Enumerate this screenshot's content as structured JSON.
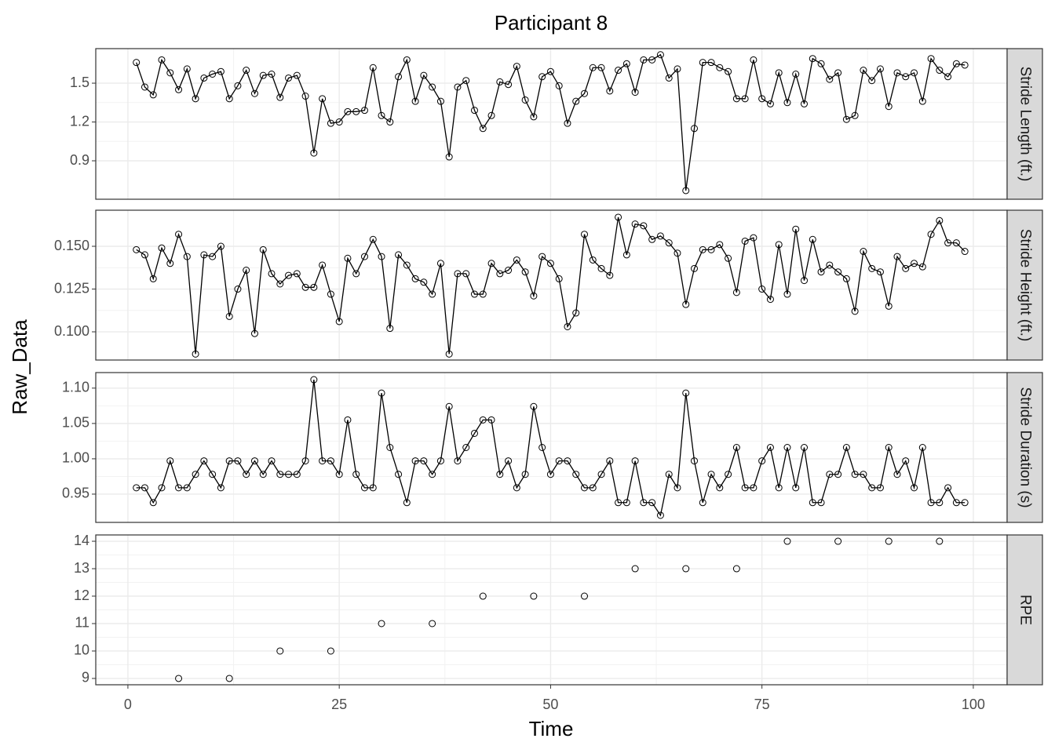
{
  "chart_data": {
    "type": "facet",
    "title": "Participant 8",
    "x_label": "Time",
    "y_label": "Raw_Data",
    "xlim": [
      -3.8,
      104
    ],
    "xticks": [
      0,
      25,
      50,
      75,
      100
    ],
    "grid": true,
    "panels": [
      {
        "type": "line",
        "strip": "Stride Length (ft.)",
        "ylim": [
          0.603,
          1.767
        ],
        "yticks": [
          0.9,
          1.2,
          1.5
        ],
        "x": [
          1,
          2,
          3,
          4,
          5,
          6,
          7,
          8,
          9,
          10,
          11,
          12,
          13,
          14,
          15,
          16,
          17,
          18,
          19,
          20,
          21,
          22,
          23,
          24,
          25,
          26,
          27,
          28,
          29,
          30,
          31,
          32,
          33,
          34,
          35,
          36,
          37,
          38,
          39,
          40,
          41,
          42,
          43,
          44,
          45,
          46,
          47,
          48,
          49,
          50,
          51,
          52,
          53,
          54,
          55,
          56,
          57,
          58,
          59,
          60,
          61,
          62,
          63,
          64,
          65,
          66,
          67,
          68,
          69,
          70,
          71,
          72,
          73,
          74,
          75,
          76,
          77,
          78,
          79,
          80,
          81,
          82,
          83,
          84,
          85,
          86,
          87,
          88,
          89,
          90,
          91,
          92,
          93,
          94,
          95,
          96,
          97,
          98,
          99
        ],
        "values": [
          1.66,
          1.47,
          1.41,
          1.68,
          1.58,
          1.45,
          1.61,
          1.38,
          1.54,
          1.57,
          1.59,
          1.38,
          1.48,
          1.6,
          1.42,
          1.56,
          1.57,
          1.39,
          1.54,
          1.56,
          1.4,
          0.96,
          1.38,
          1.19,
          1.2,
          1.28,
          1.28,
          1.29,
          1.62,
          1.25,
          1.2,
          1.55,
          1.68,
          1.36,
          1.56,
          1.47,
          1.36,
          0.93,
          1.47,
          1.52,
          1.29,
          1.15,
          1.25,
          1.51,
          1.49,
          1.63,
          1.37,
          1.24,
          1.55,
          1.59,
          1.48,
          1.19,
          1.36,
          1.42,
          1.62,
          1.62,
          1.44,
          1.6,
          1.65,
          1.43,
          1.68,
          1.68,
          1.72,
          1.54,
          1.61,
          0.67,
          1.15,
          1.66,
          1.66,
          1.62,
          1.59,
          1.38,
          1.38,
          1.68,
          1.38,
          1.34,
          1.58,
          1.35,
          1.57,
          1.34,
          1.69,
          1.65,
          1.53,
          1.58,
          1.22,
          1.25,
          1.6,
          1.52,
          1.61,
          1.32,
          1.58,
          1.55,
          1.58,
          1.36,
          1.69,
          1.6,
          1.55,
          1.65,
          1.64
        ]
      },
      {
        "type": "line",
        "strip": "Stride Height (ft.)",
        "ylim": [
          0.0835,
          0.1711
        ],
        "yticks": [
          {
            "value": 0.1,
            "label": "0.100"
          },
          {
            "value": 0.125,
            "label": "0.125"
          },
          {
            "value": 0.15,
            "label": "0.150"
          }
        ],
        "x": [
          1,
          2,
          3,
          4,
          5,
          6,
          7,
          8,
          9,
          10,
          11,
          12,
          13,
          14,
          15,
          16,
          17,
          18,
          19,
          20,
          21,
          22,
          23,
          24,
          25,
          26,
          27,
          28,
          29,
          30,
          31,
          32,
          33,
          34,
          35,
          36,
          37,
          38,
          39,
          40,
          41,
          42,
          43,
          44,
          45,
          46,
          47,
          48,
          49,
          50,
          51,
          52,
          53,
          54,
          55,
          56,
          57,
          58,
          59,
          60,
          61,
          62,
          63,
          64,
          65,
          66,
          67,
          68,
          69,
          70,
          71,
          72,
          73,
          74,
          75,
          76,
          77,
          78,
          79,
          80,
          81,
          82,
          83,
          84,
          85,
          86,
          87,
          88,
          89,
          90,
          91,
          92,
          93,
          94,
          95,
          96,
          97,
          98,
          99
        ],
        "values": [
          0.148,
          0.145,
          0.131,
          0.149,
          0.14,
          0.157,
          0.144,
          0.087,
          0.145,
          0.144,
          0.15,
          0.109,
          0.125,
          0.136,
          0.099,
          0.148,
          0.134,
          0.128,
          0.133,
          0.134,
          0.126,
          0.126,
          0.139,
          0.122,
          0.106,
          0.143,
          0.134,
          0.144,
          0.154,
          0.144,
          0.102,
          0.145,
          0.139,
          0.131,
          0.129,
          0.122,
          0.14,
          0.087,
          0.134,
          0.134,
          0.122,
          0.122,
          0.14,
          0.134,
          0.136,
          0.142,
          0.135,
          0.121,
          0.144,
          0.14,
          0.131,
          0.103,
          0.111,
          0.157,
          0.142,
          0.137,
          0.133,
          0.167,
          0.145,
          0.163,
          0.162,
          0.154,
          0.156,
          0.152,
          0.146,
          0.116,
          0.137,
          0.148,
          0.148,
          0.151,
          0.143,
          0.123,
          0.153,
          0.155,
          0.125,
          0.119,
          0.151,
          0.122,
          0.16,
          0.13,
          0.154,
          0.135,
          0.139,
          0.135,
          0.131,
          0.112,
          0.147,
          0.137,
          0.135,
          0.115,
          0.144,
          0.137,
          0.14,
          0.138,
          0.157,
          0.165,
          0.152,
          0.152,
          0.147
        ]
      },
      {
        "type": "line",
        "strip": "Stride Duration (s)",
        "ylim": [
          0.91,
          1.122
        ],
        "yticks": [
          0.95,
          {
            "value": 1.0,
            "label": "1.00"
          },
          1.05,
          {
            "value": 1.1,
            "label": "1.10"
          }
        ],
        "x": [
          1,
          2,
          3,
          4,
          5,
          6,
          7,
          8,
          9,
          10,
          11,
          12,
          13,
          14,
          15,
          16,
          17,
          18,
          19,
          20,
          21,
          22,
          23,
          24,
          25,
          26,
          27,
          28,
          29,
          30,
          31,
          32,
          33,
          34,
          35,
          36,
          37,
          38,
          39,
          40,
          41,
          42,
          43,
          44,
          45,
          46,
          47,
          48,
          49,
          50,
          51,
          52,
          53,
          54,
          55,
          56,
          57,
          58,
          59,
          60,
          61,
          62,
          63,
          64,
          65,
          66,
          67,
          68,
          69,
          70,
          71,
          72,
          73,
          74,
          75,
          76,
          77,
          78,
          79,
          80,
          81,
          82,
          83,
          84,
          85,
          86,
          87,
          88,
          89,
          90,
          91,
          92,
          93,
          94,
          95,
          96,
          97,
          98,
          99
        ],
        "values": [
          0.959,
          0.959,
          0.938,
          0.959,
          0.997,
          0.959,
          0.959,
          0.978,
          0.997,
          0.978,
          0.959,
          0.997,
          0.997,
          0.978,
          0.997,
          0.978,
          0.997,
          0.978,
          0.978,
          0.978,
          0.997,
          1.112,
          0.997,
          0.997,
          0.978,
          1.055,
          0.978,
          0.959,
          0.959,
          1.093,
          1.016,
          0.978,
          0.938,
          0.997,
          0.997,
          0.978,
          0.997,
          1.074,
          0.997,
          1.016,
          1.036,
          1.055,
          1.055,
          0.978,
          0.997,
          0.959,
          0.978,
          1.074,
          1.016,
          0.978,
          0.997,
          0.997,
          0.978,
          0.959,
          0.959,
          0.978,
          0.997,
          0.938,
          0.938,
          0.997,
          0.938,
          0.938,
          0.92,
          0.978,
          0.959,
          1.093,
          0.997,
          0.938,
          0.978,
          0.959,
          0.978,
          1.016,
          0.959,
          0.959,
          0.997,
          1.016,
          0.959,
          1.016,
          0.959,
          1.016,
          0.938,
          0.938,
          0.978,
          0.978,
          1.016,
          0.978,
          0.978,
          0.959,
          0.959,
          1.016,
          0.978,
          0.997,
          0.959,
          1.016,
          0.938,
          0.938,
          0.959,
          0.938,
          0.938
        ]
      },
      {
        "type": "scatter",
        "strip": "RPE",
        "ylim": [
          8.77,
          14.23
        ],
        "yticks": [
          9,
          10,
          11,
          12,
          13,
          14
        ],
        "x": [
          6,
          12,
          18,
          24,
          30,
          36,
          42,
          48,
          54,
          60,
          66,
          72,
          78,
          84,
          90,
          96
        ],
        "values": [
          9,
          9,
          10,
          10,
          11,
          11,
          12,
          12,
          12,
          13,
          13,
          13,
          14,
          14,
          14,
          14
        ]
      }
    ]
  }
}
